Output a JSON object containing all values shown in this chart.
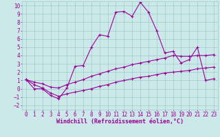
{
  "xlabel": "Windchill (Refroidissement éolien,°C)",
  "background_color": "#cce8e8",
  "grid_color": "#99cccc",
  "line_color": "#990099",
  "xlim": [
    -0.5,
    23.5
  ],
  "ylim": [
    -2.5,
    10.5
  ],
  "xticks": [
    0,
    1,
    2,
    3,
    4,
    5,
    6,
    7,
    8,
    9,
    10,
    11,
    12,
    13,
    14,
    15,
    16,
    17,
    18,
    19,
    20,
    21,
    22,
    23
  ],
  "yticks": [
    -2,
    -1,
    0,
    1,
    2,
    3,
    4,
    5,
    6,
    7,
    8,
    9,
    10
  ],
  "line1_x": [
    0,
    1,
    2,
    3,
    4,
    5,
    6,
    7,
    8,
    9,
    10,
    11,
    12,
    13,
    14,
    15,
    16,
    17,
    18,
    19,
    20,
    21,
    22,
    23
  ],
  "line1_y": [
    1.1,
    0.0,
    0.0,
    -0.8,
    -1.2,
    0.1,
    2.7,
    2.8,
    5.0,
    6.5,
    6.3,
    9.2,
    9.3,
    8.7,
    10.4,
    9.2,
    7.0,
    4.3,
    4.5,
    3.1,
    3.5,
    5.0,
    1.0,
    1.2
  ],
  "line2_x": [
    0,
    1,
    2,
    3,
    4,
    5,
    6,
    7,
    8,
    9,
    10,
    11,
    12,
    13,
    14,
    15,
    16,
    17,
    18,
    19,
    20,
    21,
    22,
    23
  ],
  "line2_y": [
    1.1,
    0.8,
    0.6,
    0.2,
    0.1,
    0.5,
    0.8,
    1.1,
    1.5,
    1.8,
    2.1,
    2.4,
    2.6,
    2.9,
    3.1,
    3.3,
    3.5,
    3.7,
    4.0,
    3.9,
    3.9,
    4.0,
    4.0,
    4.1
  ],
  "line3_x": [
    0,
    1,
    2,
    3,
    4,
    5,
    6,
    7,
    8,
    9,
    10,
    11,
    12,
    13,
    14,
    15,
    16,
    17,
    18,
    19,
    20,
    21,
    22,
    23
  ],
  "line3_y": [
    1.1,
    0.5,
    0.1,
    -0.5,
    -0.9,
    -0.6,
    -0.4,
    -0.2,
    0.0,
    0.3,
    0.5,
    0.8,
    1.0,
    1.2,
    1.4,
    1.5,
    1.7,
    1.9,
    2.0,
    2.1,
    2.2,
    2.4,
    2.5,
    2.6
  ],
  "marker": "+",
  "markersize": 3,
  "markeredgewidth": 0.8,
  "linewidth": 0.8,
  "xlabel_fontsize": 6,
  "tick_fontsize": 5.5,
  "font_family": "monospace"
}
